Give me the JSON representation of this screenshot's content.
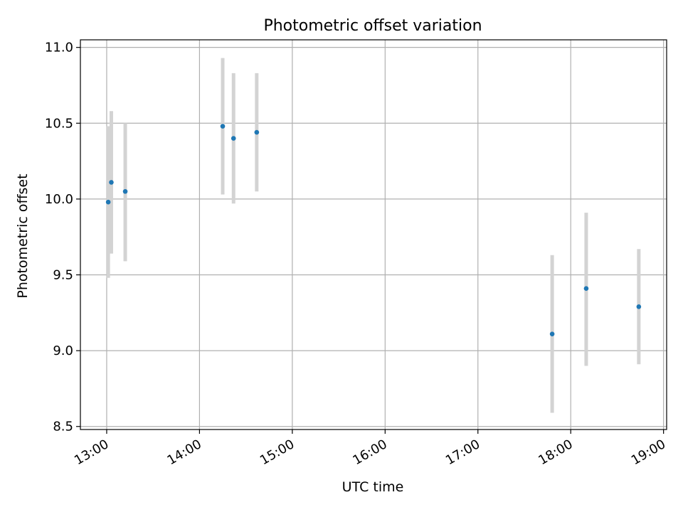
{
  "chart_data": {
    "type": "scatter",
    "title": "Photometric offset variation",
    "xlabel": "UTC time",
    "ylabel": "Photometric offset",
    "xlim": [
      "12:43",
      "19:00"
    ],
    "ylim": [
      8.48,
      11.05
    ],
    "grid": true,
    "x_ticks": [
      "13:00",
      "14:00",
      "15:00",
      "16:00",
      "17:00",
      "18:00",
      "19:00"
    ],
    "y_ticks": [
      "8.5",
      "9.0",
      "9.5",
      "10.0",
      "10.5",
      "11.0"
    ],
    "series": [
      {
        "color": "#1f77b4",
        "errorbar_color": "#d3d3d3",
        "points": [
          {
            "time": "13:01",
            "value": 9.98,
            "low": 9.48,
            "high": 10.48
          },
          {
            "time": "13:03",
            "value": 10.11,
            "low": 9.64,
            "high": 10.58
          },
          {
            "time": "13:12",
            "value": 10.05,
            "low": 9.59,
            "high": 10.5
          },
          {
            "time": "14:15",
            "value": 10.48,
            "low": 10.03,
            "high": 10.93
          },
          {
            "time": "14:22",
            "value": 10.4,
            "low": 9.97,
            "high": 10.83
          },
          {
            "time": "14:37",
            "value": 10.44,
            "low": 10.05,
            "high": 10.83
          },
          {
            "time": "17:48",
            "value": 9.11,
            "low": 8.59,
            "high": 9.63
          },
          {
            "time": "18:10",
            "value": 9.41,
            "low": 8.9,
            "high": 9.91
          },
          {
            "time": "18:44",
            "value": 9.29,
            "low": 8.91,
            "high": 9.67
          }
        ]
      }
    ]
  }
}
